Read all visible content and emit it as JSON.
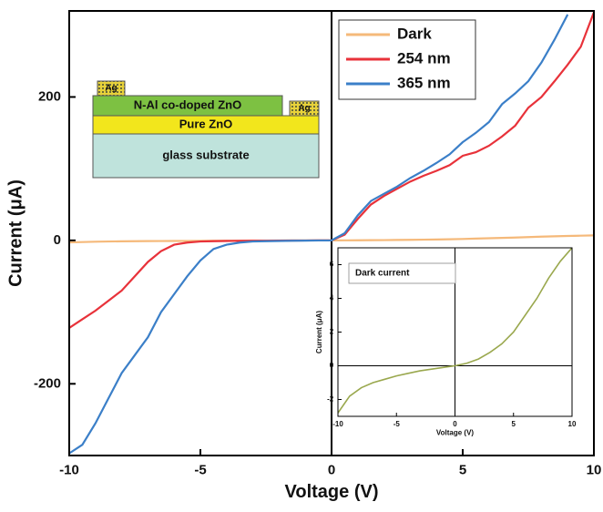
{
  "chart_data": [
    {
      "type": "line",
      "x_label": "Voltage (V)",
      "y_label": "Current (μA)",
      "x": [
        -10,
        -9.5,
        -9,
        -8.5,
        -8,
        -7.5,
        -7,
        -6.5,
        -6,
        -5.5,
        -5,
        -4.5,
        -4,
        -3.5,
        -3,
        -2.5,
        -2,
        -1.5,
        -1,
        -0.5,
        0,
        0.5,
        1,
        1.5,
        2,
        2.5,
        3,
        3.5,
        4,
        4.5,
        5,
        5.5,
        6,
        6.5,
        7,
        7.5,
        8,
        8.5,
        9,
        9.5,
        10
      ],
      "series": [
        {
          "name": "Dark",
          "color": "#f5b97a",
          "values": [
            -2.8,
            -2.3,
            -1.8,
            -1.5,
            -1.3,
            -1.15,
            -1.0,
            -0.9,
            -0.8,
            -0.7,
            -0.6,
            -0.52,
            -0.45,
            -0.38,
            -0.3,
            -0.25,
            -0.2,
            -0.15,
            -0.1,
            -0.05,
            0,
            0.07,
            0.15,
            0.27,
            0.4,
            0.6,
            0.8,
            1.05,
            1.3,
            1.6,
            2.0,
            2.5,
            3.0,
            3.5,
            4.0,
            4.6,
            5.2,
            5.7,
            6.2,
            6.6,
            7.0
          ]
        },
        {
          "name": "254 nm",
          "color": "#e8323a",
          "values": [
            -122,
            -110,
            -98,
            -84,
            -70,
            -50,
            -30,
            -15,
            -6,
            -3,
            -1.5,
            -1.1,
            -0.8,
            -0.6,
            -0.5,
            -0.4,
            -0.3,
            -0.2,
            -0.1,
            -0.05,
            0,
            8,
            30,
            50,
            62,
            72,
            82,
            90,
            97,
            105,
            118,
            123,
            132,
            145,
            160,
            185,
            200,
            222,
            245,
            270,
            318
          ]
        },
        {
          "name": "365 nm",
          "color": "#3b7fc8",
          "values": [
            -297,
            -285,
            -255,
            -220,
            -185,
            -160,
            -135,
            -100,
            -75,
            -50,
            -28,
            -12,
            -6,
            -3,
            -1.5,
            -1.1,
            -0.8,
            -0.5,
            -0.3,
            -0.1,
            0,
            10,
            35,
            55,
            65,
            75,
            87,
            97,
            108,
            120,
            137,
            150,
            165,
            190,
            205,
            222,
            248,
            280,
            315,
            null,
            null
          ]
        }
      ],
      "xlim": [
        -10,
        10
      ],
      "ylim": [
        -300,
        320
      ],
      "xticks": [
        -10,
        -5,
        0,
        5,
        10
      ],
      "yticks": [
        -200,
        0,
        200
      ],
      "legend": "upper right",
      "device_diagram": {
        "contacts": [
          "Ag",
          "Ag"
        ],
        "top_layer": "N-Al co-doped ZnO",
        "middle_layer": "Pure ZnO",
        "substrate": "glass substrate"
      }
    },
    {
      "type": "line",
      "x_label": "Voltage (V)",
      "y_label": "Current (μA)",
      "x": [
        -10,
        -9,
        -8,
        -7,
        -6,
        -5,
        -4,
        -3,
        -2,
        -1,
        0,
        1,
        2,
        3,
        4,
        5,
        6,
        7,
        8,
        9,
        10
      ],
      "series": [
        {
          "name": "Dark current",
          "color": "#9aa84e",
          "values": [
            -2.8,
            -1.8,
            -1.3,
            -1.0,
            -0.8,
            -0.6,
            -0.45,
            -0.3,
            -0.2,
            -0.1,
            0,
            0.15,
            0.4,
            0.8,
            1.3,
            2.0,
            3.0,
            4.0,
            5.2,
            6.2,
            7.0
          ]
        }
      ],
      "xlim": [
        -10,
        10
      ],
      "ylim": [
        -3,
        7
      ],
      "xticks": [
        -10,
        -5,
        0,
        5,
        10
      ],
      "yticks": [
        -2,
        0,
        2,
        4,
        6
      ]
    }
  ]
}
